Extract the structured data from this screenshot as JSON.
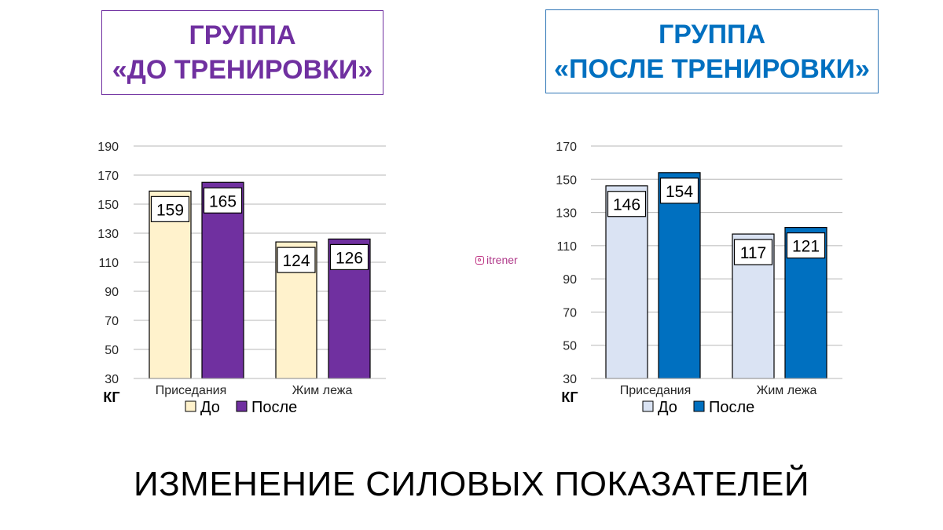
{
  "groups": [
    {
      "title_line1": "ГРУППА",
      "title_line2": "«ДО ТРЕНИРОВКИ»"
    },
    {
      "title_line1": "ГРУППА",
      "title_line2": "«ПОСЛЕ ТРЕНИРОВКИ»"
    }
  ],
  "watermark": "itrener",
  "caption": "ИЗМЕНЕНИЕ СИЛОВЫХ ПОКАЗАТЕЛЕЙ",
  "chart_data": [
    {
      "type": "bar",
      "categories": [
        "Приседания",
        "Жим лежа"
      ],
      "series": [
        {
          "name": "До",
          "values": [
            159,
            124
          ],
          "color": "#FFF2CC"
        },
        {
          "name": "После",
          "values": [
            165,
            126
          ],
          "color": "#7030A0"
        }
      ],
      "ylim": [
        30,
        190
      ],
      "yticks": [
        30,
        50,
        70,
        90,
        110,
        130,
        150,
        170,
        190
      ],
      "unit_label": "КГ",
      "grid": true,
      "legend": "bottom"
    },
    {
      "type": "bar",
      "categories": [
        "Приседания",
        "Жим лежа"
      ],
      "series": [
        {
          "name": "До",
          "values": [
            146,
            117
          ],
          "color": "#DAE3F3"
        },
        {
          "name": "После",
          "values": [
            154,
            121
          ],
          "color": "#0070C0"
        }
      ],
      "ylim": [
        30,
        170
      ],
      "yticks": [
        30,
        50,
        70,
        90,
        110,
        130,
        150,
        170
      ],
      "unit_label": "КГ",
      "grid": true,
      "legend": "bottom"
    }
  ]
}
